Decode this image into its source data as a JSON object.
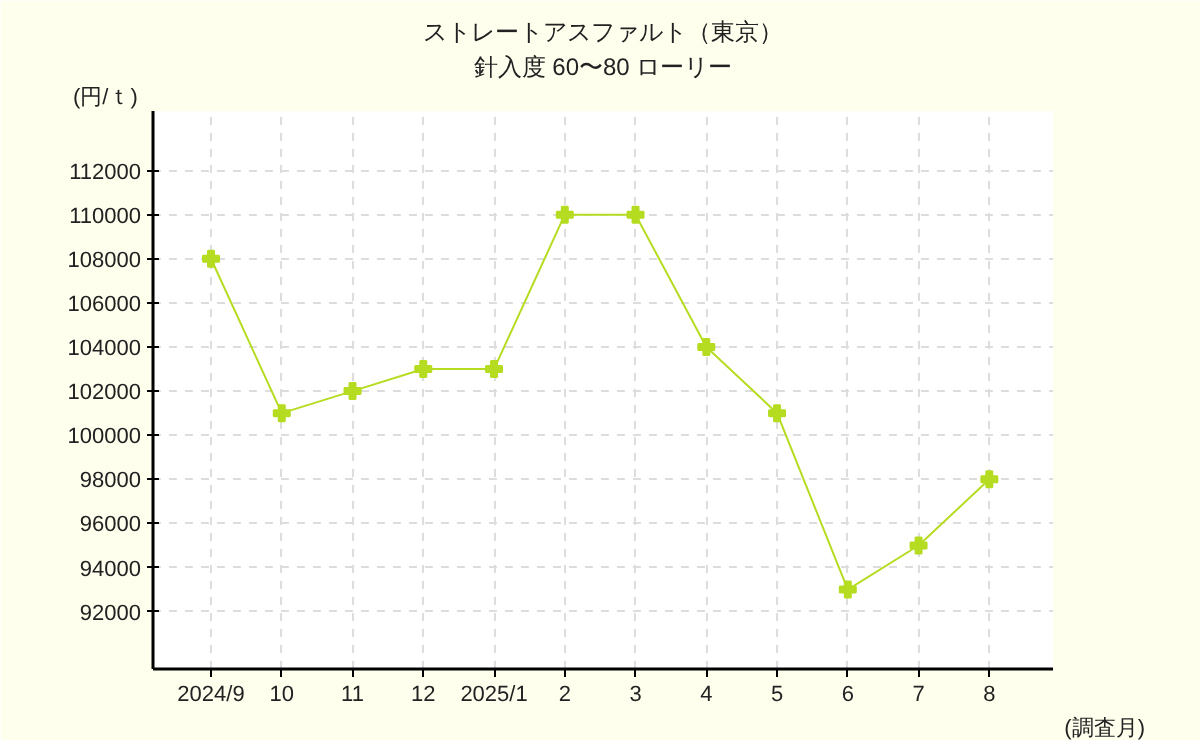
{
  "chart_data": {
    "type": "line",
    "title": "ストレートアスファルト（東京）",
    "subtitle": "針入度 60〜80 ローリー",
    "ylabel": "(円/ｔ)",
    "xlabel": "(調査月)",
    "categories": [
      "2024/9",
      "10",
      "11",
      "12",
      "2025/1",
      "2",
      "3",
      "4",
      "5",
      "6",
      "7",
      "8"
    ],
    "series": [
      {
        "color": "#b5dc20",
        "values": [
          108000,
          101000,
          102000,
          103000,
          103000,
          110000,
          110000,
          104000,
          101000,
          93000,
          95000,
          98000
        ]
      }
    ],
    "ylim": [
      89400,
      114700
    ],
    "yticks": [
      92000,
      94000,
      96000,
      98000,
      100000,
      102000,
      104000,
      106000,
      108000,
      110000,
      112000
    ],
    "grid": true,
    "marker": "cross",
    "line_style": "solid"
  }
}
